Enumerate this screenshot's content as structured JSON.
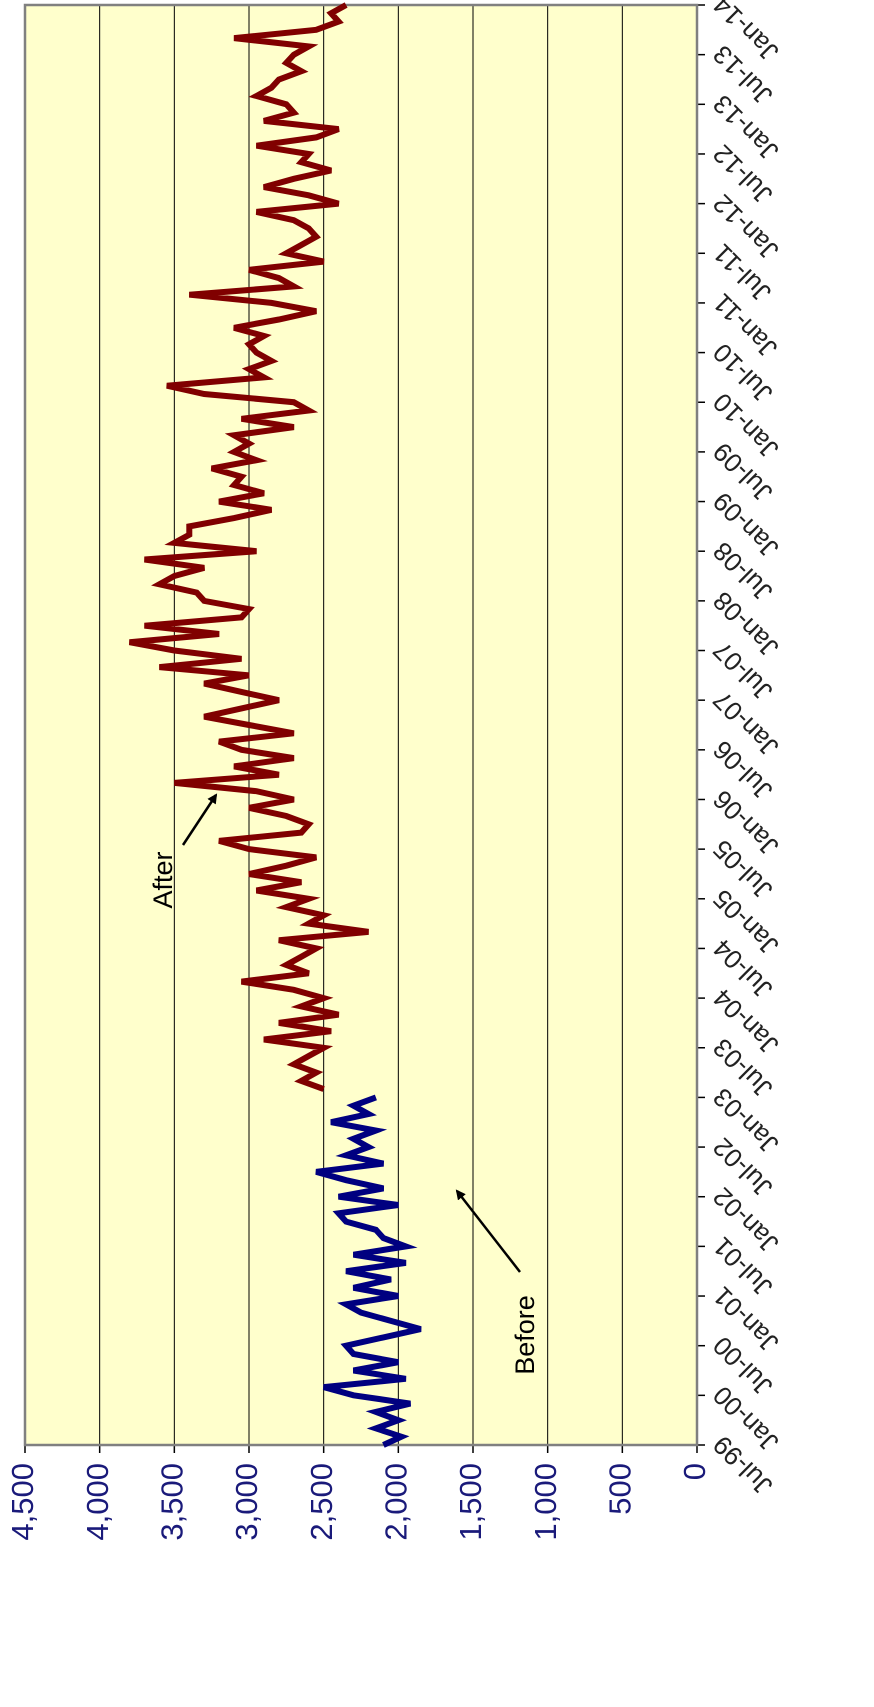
{
  "chart_data": {
    "type": "line",
    "categories": [
      "Jul-99",
      null,
      null,
      null,
      null,
      null,
      "Jan-00",
      null,
      null,
      null,
      null,
      null,
      "Jul-00",
      null,
      null,
      null,
      null,
      null,
      "Jan-01",
      null,
      null,
      null,
      null,
      null,
      "Jul-01",
      null,
      null,
      null,
      null,
      null,
      "Jan-02",
      null,
      null,
      null,
      null,
      null,
      "Jul-02",
      null,
      null,
      null,
      null,
      null,
      "Jan-03",
      null,
      null,
      null,
      null,
      null,
      "Jul-03",
      null,
      null,
      null,
      null,
      null,
      "Jan-04",
      null,
      null,
      null,
      null,
      null,
      "Jul-04",
      null,
      null,
      null,
      null,
      null,
      "Jan-05",
      null,
      null,
      null,
      null,
      null,
      "Jul-05",
      null,
      null,
      null,
      null,
      null,
      "Jan-06",
      null,
      null,
      null,
      null,
      null,
      "Jul-06",
      null,
      null,
      null,
      null,
      null,
      "Jan-07",
      null,
      null,
      null,
      null,
      null,
      "Jul-07",
      null,
      null,
      null,
      null,
      null,
      "Jan-08",
      null,
      null,
      null,
      null,
      null,
      "Jul-08",
      null,
      null,
      null,
      null,
      null,
      "Jan-09",
      null,
      null,
      null,
      null,
      null,
      "Jul-09",
      null,
      null,
      null,
      null,
      null,
      "Jan-10",
      null,
      null,
      null,
      null,
      null,
      "Jul-10",
      null,
      null,
      null,
      null,
      null,
      "Jan-11",
      null,
      null,
      null,
      null,
      null,
      "Jul-11",
      null,
      null,
      null,
      null,
      null,
      "Jan-12",
      null,
      null,
      null,
      null,
      null,
      "Jul-12",
      null,
      null,
      null,
      null,
      null,
      "Jan-13",
      null,
      null,
      null,
      null,
      null,
      "Jul-13",
      null,
      null,
      null,
      null,
      null,
      "Jan-14"
    ],
    "series": [
      {
        "name": "Before",
        "color": "#000080",
        "values": [
          2100,
          1980,
          2150,
          2000,
          2150,
          1920,
          2300,
          2500,
          1950,
          2300,
          2000,
          2300,
          2350,
          2100,
          1850,
          2050,
          2250,
          2350,
          2000,
          2300,
          2050,
          2350,
          1950,
          2300,
          1950,
          2100,
          2150,
          2350,
          2400,
          2000,
          2400,
          2100,
          2350,
          2550,
          2100,
          2350,
          2200,
          2300,
          2150,
          2450,
          2200,
          2300,
          2150,
          null,
          null,
          null,
          null,
          null,
          null,
          null,
          null,
          null,
          null,
          null,
          null,
          null,
          null,
          null,
          null,
          null,
          null,
          null,
          null,
          null,
          null,
          null,
          null,
          null,
          null,
          null,
          null,
          null,
          null,
          null,
          null,
          null,
          null,
          null,
          null,
          null,
          null,
          null,
          null,
          null,
          null,
          null,
          null,
          null,
          null,
          null,
          null,
          null,
          null,
          null,
          null,
          null,
          null,
          null,
          null,
          null,
          null,
          null,
          null,
          null,
          null,
          null,
          null,
          null,
          null,
          null,
          null,
          null,
          null,
          null,
          null,
          null,
          null,
          null,
          null,
          null,
          null,
          null,
          null,
          null,
          null,
          null,
          null,
          null,
          null,
          null,
          null,
          null,
          null,
          null,
          null,
          null,
          null,
          null,
          null,
          null,
          null,
          null,
          null,
          null,
          null,
          null,
          null,
          null,
          null,
          null,
          null,
          null,
          null,
          null,
          null,
          null,
          null,
          null,
          null,
          null,
          null,
          null,
          null,
          null,
          null,
          null,
          null,
          null,
          null,
          null,
          null,
          null,
          null,
          null,
          null
        ]
      },
      {
        "name": "After",
        "color": "#800000",
        "values": [
          null,
          null,
          null,
          null,
          null,
          null,
          null,
          null,
          null,
          null,
          null,
          null,
          null,
          null,
          null,
          null,
          null,
          null,
          null,
          null,
          null,
          null,
          null,
          null,
          null,
          null,
          null,
          null,
          null,
          null,
          null,
          null,
          null,
          null,
          null,
          null,
          null,
          null,
          null,
          null,
          null,
          null,
          null,
          2500,
          2650,
          2550,
          2700,
          2600,
          2500,
          2900,
          2450,
          2800,
          2400,
          2650,
          2500,
          2700,
          3050,
          2600,
          2750,
          2650,
          2550,
          2800,
          2200,
          2600,
          2500,
          2750,
          2600,
          2950,
          2650,
          3000,
          2750,
          2550,
          3000,
          3200,
          2650,
          2600,
          2750,
          3000,
          2700,
          2950,
          3500,
          2800,
          3100,
          2700,
          3050,
          3200,
          2700,
          3000,
          3300,
          3050,
          2800,
          3050,
          3300,
          3000,
          3600,
          3050,
          3500,
          3800,
          3200,
          3700,
          3050,
          3000,
          3300,
          3350,
          3600,
          3500,
          3300,
          3700,
          2950,
          3500,
          3400,
          3400,
          3100,
          2850,
          3200,
          2900,
          3100,
          3050,
          3250,
          2950,
          3100,
          3000,
          3100,
          2700,
          3050,
          2600,
          2700,
          3300,
          3550,
          2900,
          3000,
          2850,
          2950,
          3000,
          2900,
          3100,
          2800,
          2550,
          2850,
          3400,
          2700,
          2800,
          3000,
          2500,
          2750,
          2650,
          2550,
          2600,
          2700,
          2950,
          2400,
          2600,
          2900,
          2700,
          2450,
          2650,
          2600,
          2950,
          2550,
          2400,
          2900,
          2700,
          2750,
          2950,
          2850,
          2800,
          2650,
          2750,
          2700,
          2600,
          3100,
          2550,
          2400,
          2450,
          2350
        ]
      }
    ],
    "ylim": [
      0,
      4500
    ],
    "yticks": [
      0,
      500,
      {
        "value": 1000,
        "label": "1,000"
      },
      {
        "value": 1500,
        "label": "1,500"
      },
      {
        "value": 2000,
        "label": "2,000"
      },
      {
        "value": 2500,
        "label": "2,500"
      },
      {
        "value": 3000,
        "label": "3,000"
      },
      {
        "value": 3500,
        "label": "3,500"
      },
      {
        "value": 4000,
        "label": "4,000"
      },
      {
        "value": 4500,
        "label": "4,500"
      }
    ],
    "grid": true,
    "rotated": true
  }
}
